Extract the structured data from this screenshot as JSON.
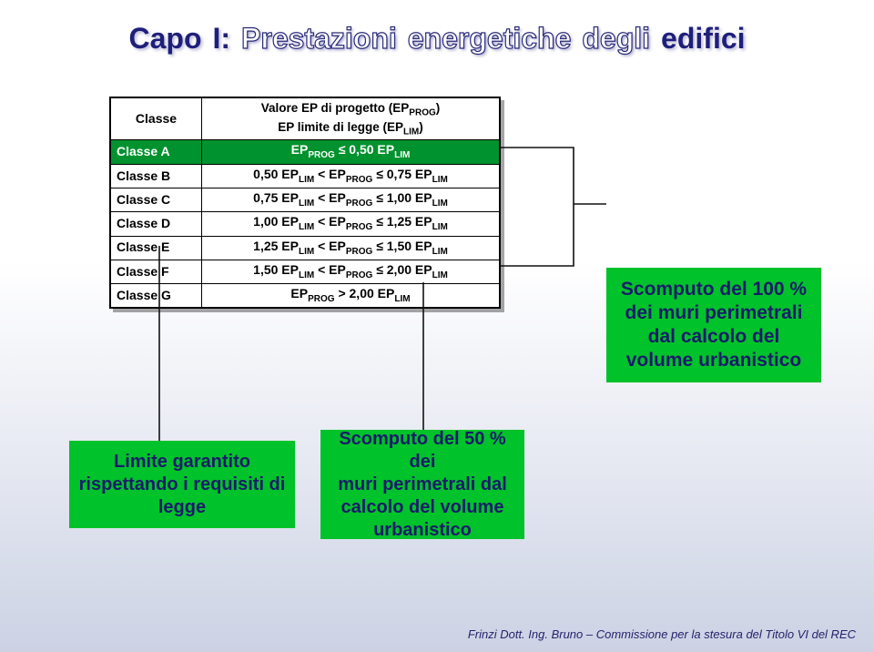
{
  "title_words": [
    {
      "text": "Capo",
      "style": "solid"
    },
    {
      "text": "I:",
      "style": "solid"
    },
    {
      "text": "Prestazioni",
      "style": "outline"
    },
    {
      "text": "energetiche",
      "style": "outline"
    },
    {
      "text": "degli",
      "style": "outline"
    },
    {
      "text": "edifici",
      "style": "solid"
    }
  ],
  "table": {
    "header_left": "Classe",
    "header_right_line1": "Valore EP di progetto (EP<sub>PROG</sub>)",
    "header_right_line2": "EP limite di legge (EP<sub>LIM</sub>)",
    "rows": [
      {
        "cls": "Classe A",
        "rule": "EP<sub>PROG</sub> ≤ 0,50 EP<sub>LIM</sub>",
        "hl": true
      },
      {
        "cls": "Classe B",
        "rule": "0,50 EP<sub>LIM</sub> < EP<sub>PROG</sub> ≤ 0,75 EP<sub>LIM</sub>",
        "hl": false
      },
      {
        "cls": "Classe C",
        "rule": "0,75 EP<sub>LIM</sub> < EP<sub>PROG</sub> ≤ 1,00 EP<sub>LIM</sub>",
        "hl": false
      },
      {
        "cls": "Classe D",
        "rule": "1,00 EP<sub>LIM</sub> < EP<sub>PROG</sub> ≤ 1,25 EP<sub>LIM</sub>",
        "hl": false
      },
      {
        "cls": "Classe E",
        "rule": "1,25 EP<sub>LIM</sub> < EP<sub>PROG</sub> ≤ 1,50 EP<sub>LIM</sub>",
        "hl": false
      },
      {
        "cls": "Classe F",
        "rule": "1,50 EP<sub>LIM</sub> < EP<sub>PROG</sub> ≤ 2,00 EP<sub>LIM</sub>",
        "hl": false
      },
      {
        "cls": "Classe G",
        "rule": "EP<sub>PROG</sub> > 2,00 EP<sub>LIM</sub>",
        "hl": false
      }
    ],
    "highlight_bg": "#00922e",
    "highlight_fg": "#ffffff"
  },
  "box_legge": {
    "lines": [
      "Limite garantito",
      "rispettando i requisiti di",
      "legge"
    ]
  },
  "box_50": {
    "lines": [
      "Scomputo del 50 % dei",
      "muri perimetrali dal",
      "calcolo del volume",
      "urbanistico"
    ]
  },
  "box_100": {
    "lines": [
      "Scomputo del 100 %",
      "dei muri perimetrali",
      "dal calcolo del",
      "volume urbanistico"
    ]
  },
  "connectors": {
    "stroke": "#111111",
    "stroke_width": 1.6,
    "paths": [
      "M 175,270 V 484",
      "M 465,310 V 472",
      "M 550,162 H 630 V 292 H 550 M 630,224 H 666"
    ]
  },
  "colors": {
    "greenbox_bg": "#00c22a",
    "greenbox_fg": "#1a1a6b",
    "title_solid": "#1f1f7a",
    "title_outline_stroke": "#2a2a7a"
  },
  "footer": "Frinzi Dott. Ing. Bruno – Commissione per la stesura del Titolo VI del REC"
}
